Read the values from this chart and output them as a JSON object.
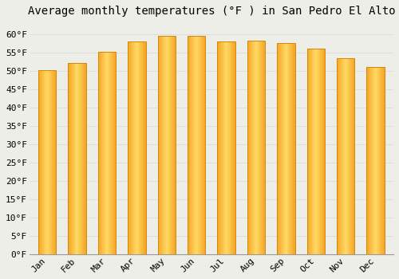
{
  "title": "Average monthly temperatures (°F ) in San Pedro El Alto",
  "months": [
    "Jan",
    "Feb",
    "Mar",
    "Apr",
    "May",
    "Jun",
    "Jul",
    "Aug",
    "Sep",
    "Oct",
    "Nov",
    "Dec"
  ],
  "values": [
    50.2,
    52.2,
    55.2,
    58.0,
    59.6,
    59.6,
    58.0,
    58.2,
    57.6,
    56.1,
    53.5,
    51.0
  ],
  "bar_color_center": "#FFD966",
  "bar_color_edge": "#F5A623",
  "bar_edge_color": "#D4870A",
  "background_color": "#EEEEE8",
  "grid_color": "#DDDDDD",
  "ylim": [
    0,
    63
  ],
  "yticks": [
    0,
    5,
    10,
    15,
    20,
    25,
    30,
    35,
    40,
    45,
    50,
    55,
    60
  ],
  "title_fontsize": 10,
  "tick_fontsize": 8,
  "bar_width": 0.6
}
